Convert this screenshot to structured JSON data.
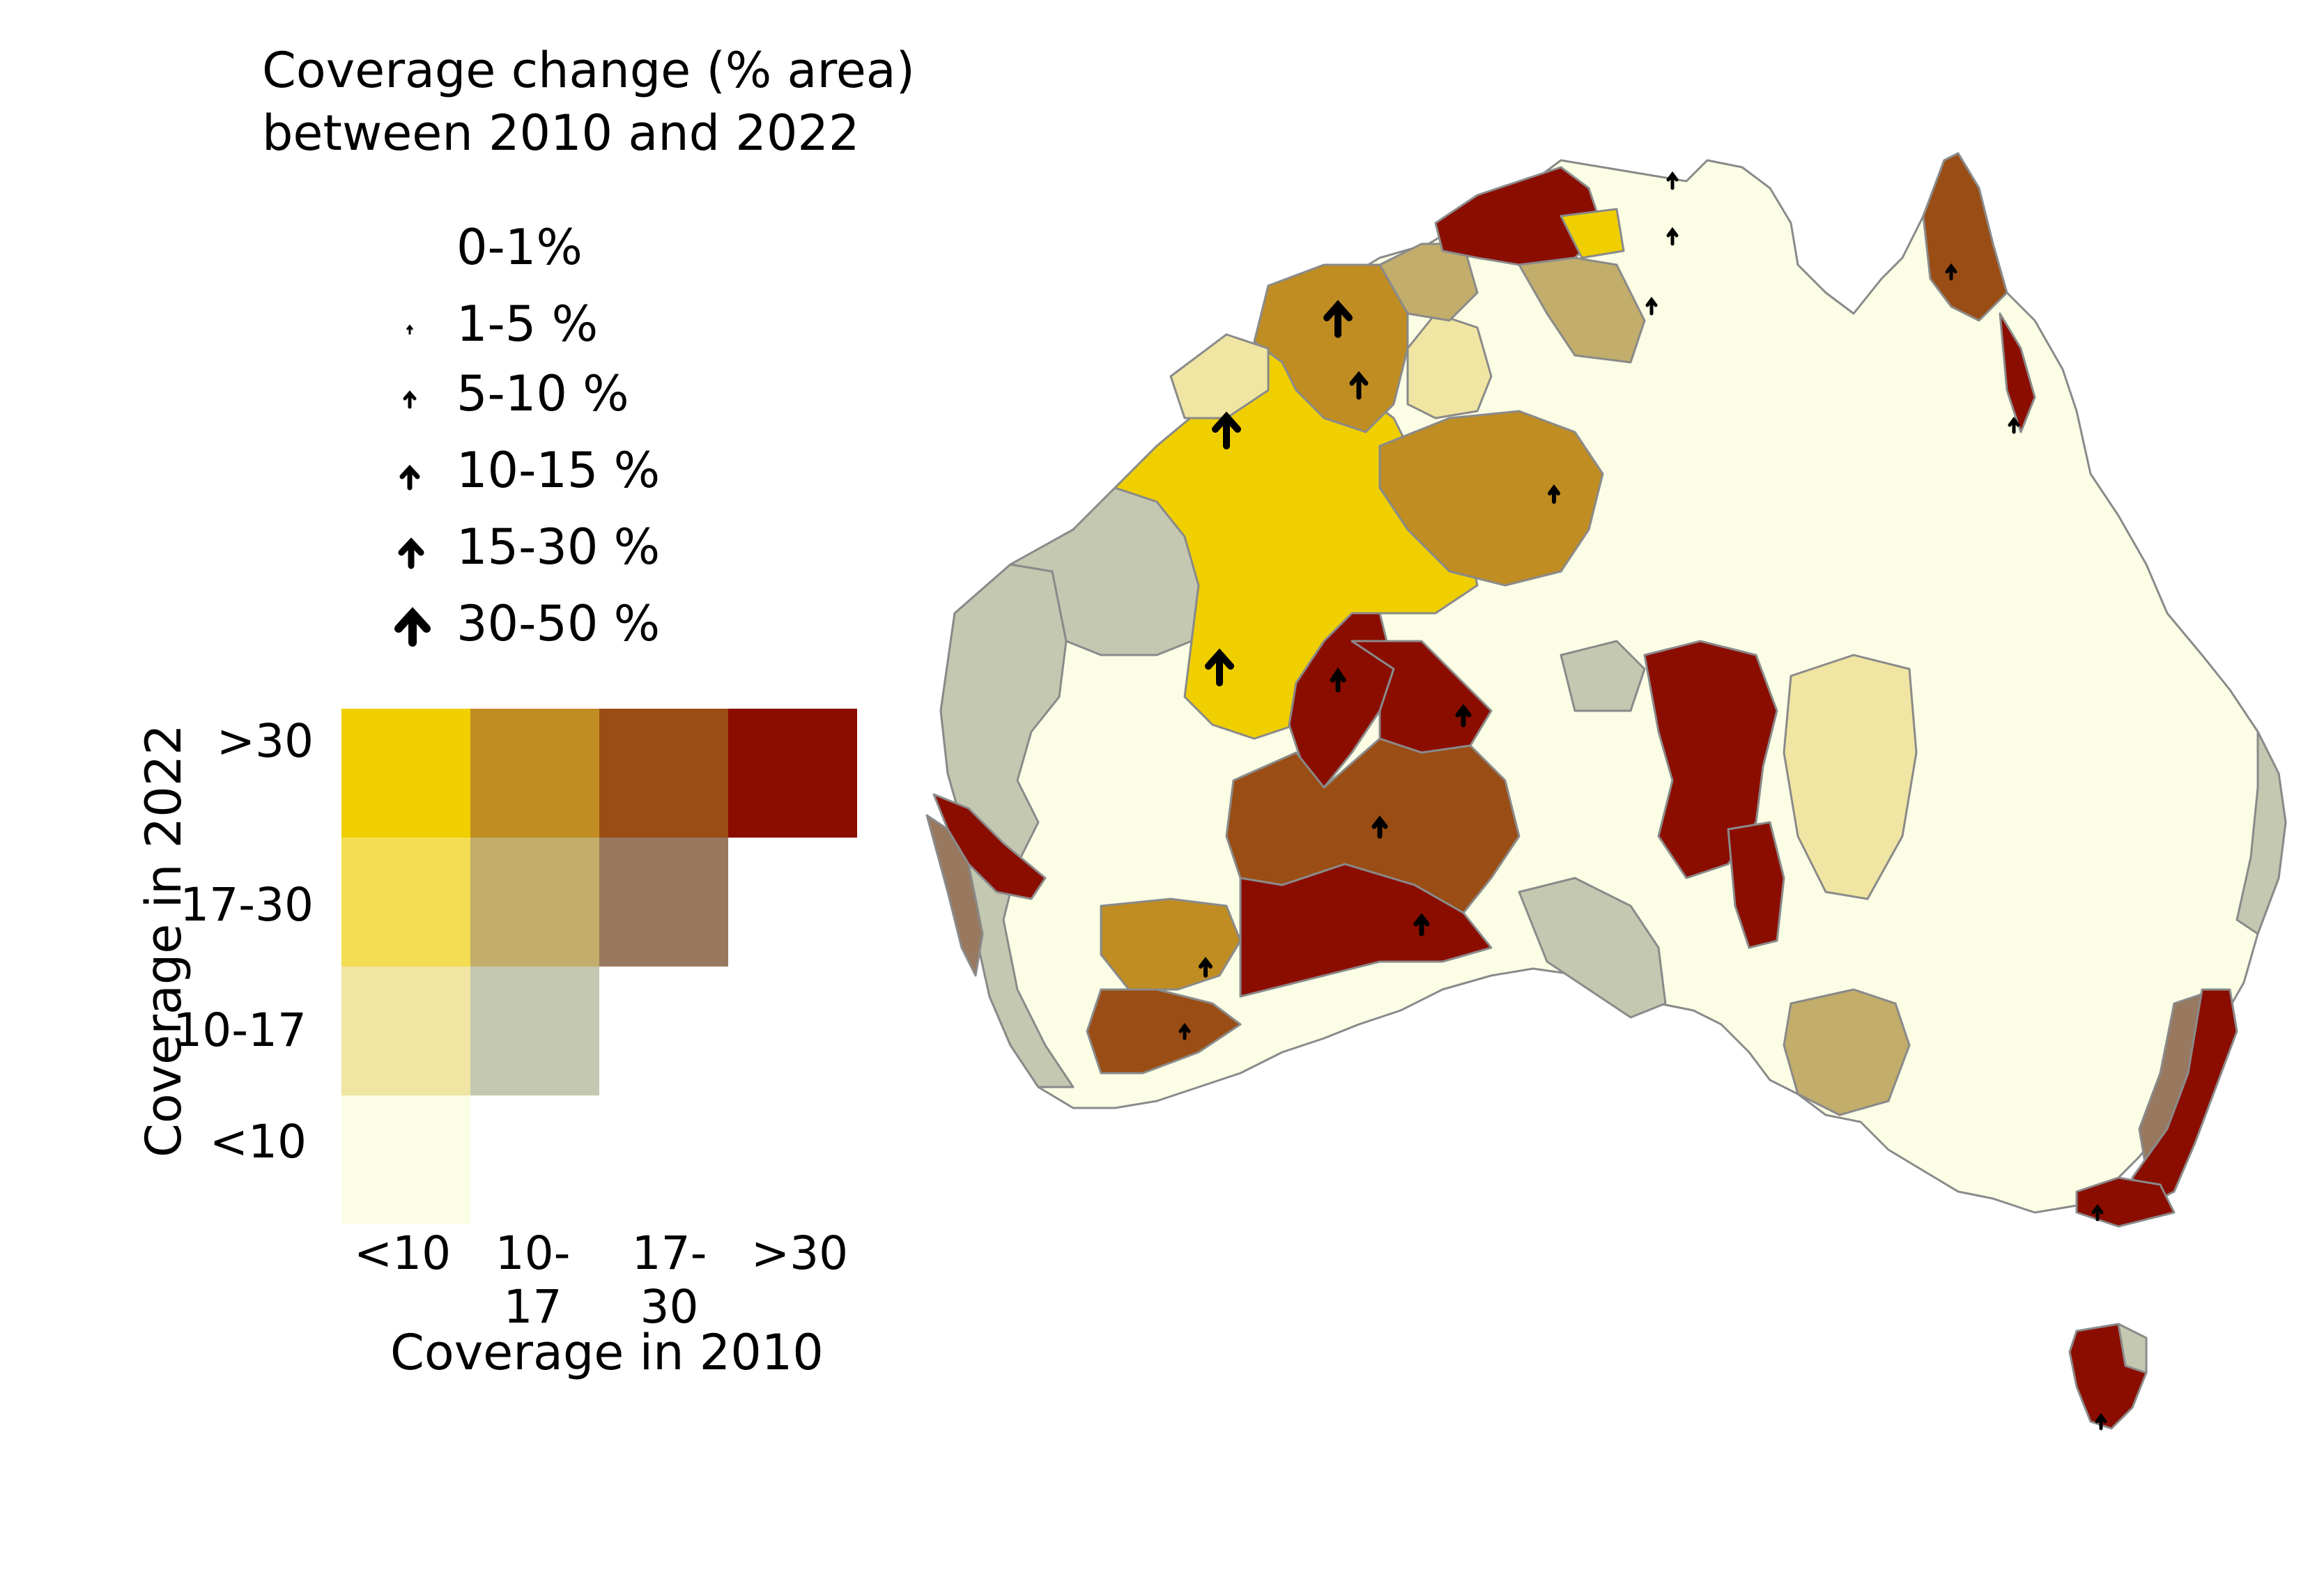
{
  "title": {
    "line1": "Coverage change (% area)",
    "line2": "between 2010 and 2022"
  },
  "arrow_legend": [
    {
      "label": "0-1%",
      "size": 0
    },
    {
      "label": "1-5 %",
      "size": 1
    },
    {
      "label": "5-10 %",
      "size": 2
    },
    {
      "label": "10-15 %",
      "size": 3
    },
    {
      "label": "15-30 %",
      "size": 4
    },
    {
      "label": "30-50 %",
      "size": 5
    }
  ],
  "bivariate_legend": {
    "y_axis_title": "Coverage in 2022",
    "x_axis_title": "Coverage in 2010",
    "y_classes": [
      ">30",
      "17-30",
      "10-17",
      "<10"
    ],
    "x_classes": [
      "<10",
      "10-17",
      "17-30",
      ">30"
    ],
    "colors": {
      "y>30_x<10": "#f0cf00",
      "y>30_x10-17": "#bf8d22",
      "y>30_x17-30": "#9a4d14",
      "y>30_x>30": "#8b0d00",
      "y17-30_x<10": "#f3dd52",
      "y17-30_x10-17": "#c2ad6a",
      "y17-30_x17-30": "#987960",
      "y10-17_x<10": "#f0e5a2",
      "y10-17_x10-17": "#c4c8b0",
      "y<10_x<10": "#fbfde5"
    }
  },
  "map": {
    "description_colors": {
      "low": "#fbfde5",
      "grey": "#c4c8b0",
      "pale": "#f0e5a2",
      "tan": "#c2ad6a",
      "mauve": "#987960",
      "gold": "#bf8d22",
      "yellow": "#f0cf00",
      "brown": "#9a4d14",
      "red": "#8b0d00",
      "border": "#8a8a8a"
    }
  }
}
